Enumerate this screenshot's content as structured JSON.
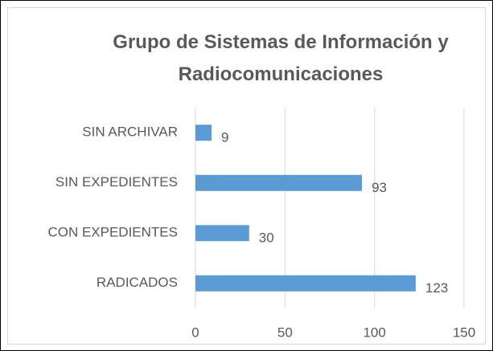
{
  "chart_data": {
    "type": "barh",
    "title": "Grupo de Sistemas de Información y Radiocomunicaciones",
    "categories": [
      "SIN ARCHIVAR",
      "SIN EXPEDIENTES",
      "CON EXPEDIENTES",
      "RADICADOS"
    ],
    "values": [
      9,
      93,
      30,
      123
    ],
    "color": "#5b9bd5",
    "xlim": [
      0,
      150
    ],
    "xticks": [
      0,
      50,
      100,
      150
    ],
    "grid": true
  }
}
